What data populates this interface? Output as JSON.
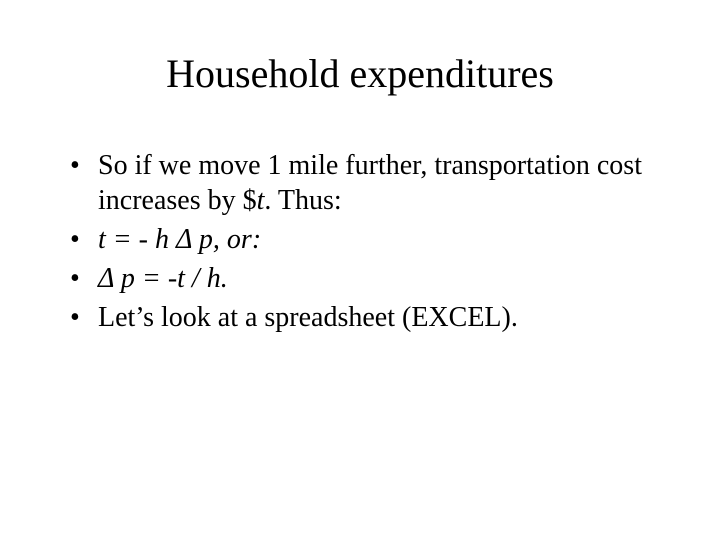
{
  "background_color": "#ffffff",
  "text_color": "#000000",
  "font_family": "Times New Roman",
  "title": {
    "text": "Household expenditures",
    "fontsize": 40,
    "align": "center",
    "weight": "normal"
  },
  "bullets": {
    "fontsize": 28,
    "marker": "•",
    "items": [
      {
        "segments": [
          {
            "text": "So if we move 1 mile further, transportation cost increases by $",
            "italic": false
          },
          {
            "text": "t",
            "italic": true
          },
          {
            "text": ".  Thus:",
            "italic": false
          }
        ]
      },
      {
        "segments": [
          {
            "text": "t = - h Δ p, or:",
            "italic": true
          }
        ]
      },
      {
        "segments": [
          {
            "text": "Δ p = -t / h.",
            "italic": true
          }
        ]
      },
      {
        "segments": [
          {
            "text": "Let’s look at a spreadsheet (EXCEL).",
            "italic": false
          }
        ]
      }
    ]
  }
}
